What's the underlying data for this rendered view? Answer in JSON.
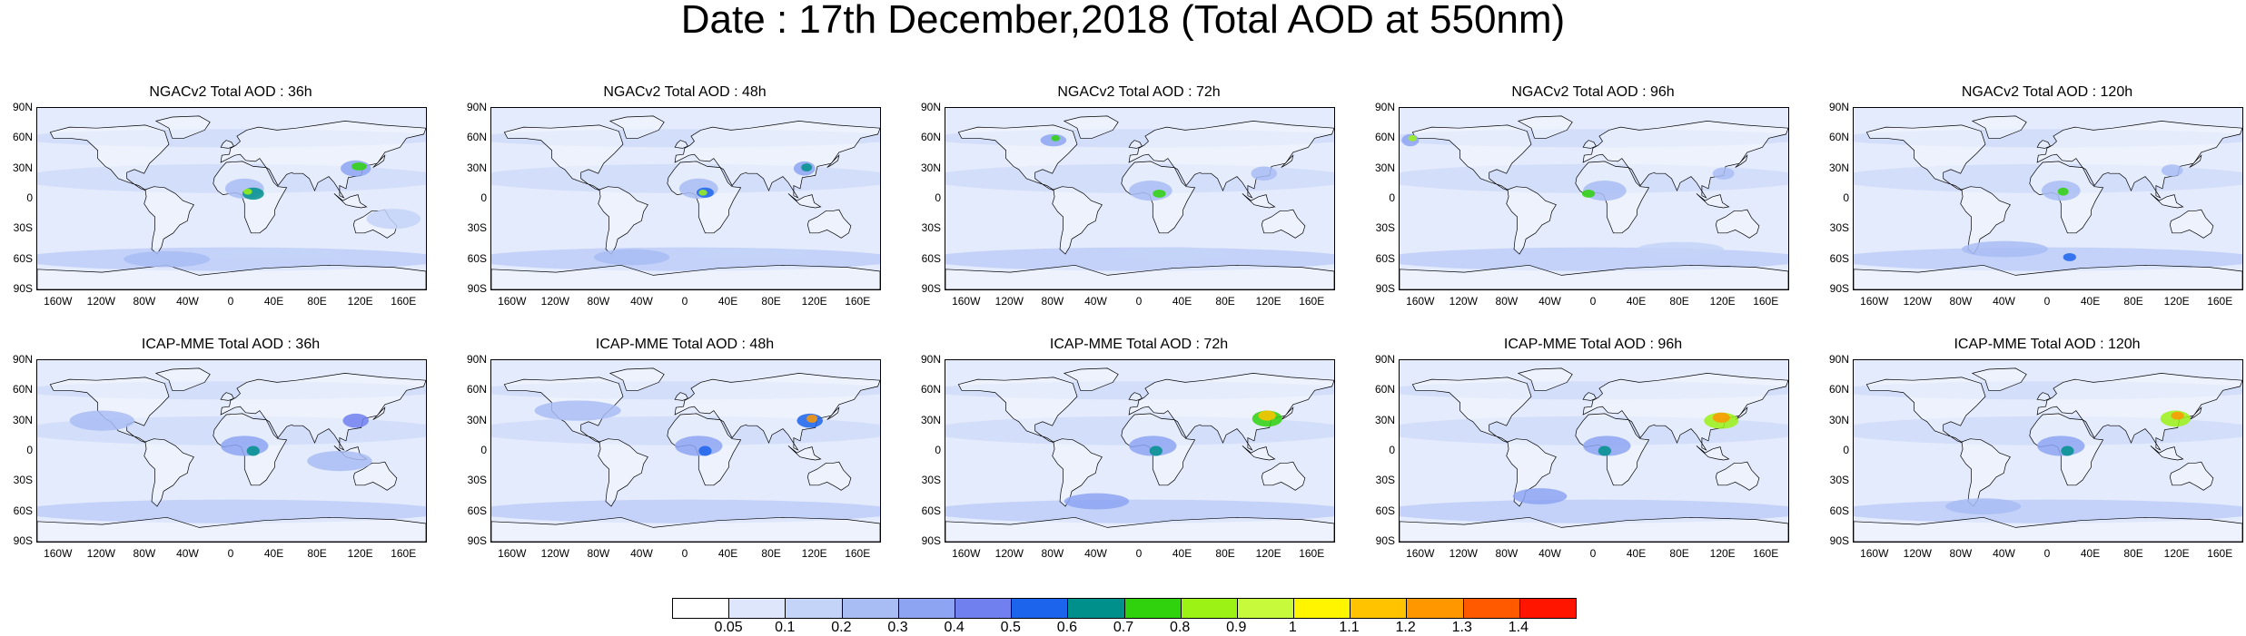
{
  "title": "Date : 17th December,2018 (Total AOD at 550nm)",
  "panels": [
    {
      "title": "NGACv2 Total AOD : 36h"
    },
    {
      "title": "NGACv2 Total AOD : 48h"
    },
    {
      "title": "NGACv2 Total AOD : 72h"
    },
    {
      "title": "NGACv2 Total AOD : 96h"
    },
    {
      "title": "NGACv2 Total AOD : 120h"
    },
    {
      "title": "ICAP-MME Total AOD : 36h"
    },
    {
      "title": "ICAP-MME Total AOD : 48h"
    },
    {
      "title": "ICAP-MME Total AOD : 72h"
    },
    {
      "title": "ICAP-MME Total AOD : 96h"
    },
    {
      "title": "ICAP-MME Total AOD : 120h"
    }
  ],
  "lat_labels": [
    "90N",
    "60N",
    "30N",
    "0",
    "30S",
    "60S",
    "90S"
  ],
  "lon_labels": [
    "160W",
    "120W",
    "80W",
    "40W",
    "0",
    "40E",
    "80E",
    "120E",
    "160E"
  ],
  "colorbar": {
    "labels": [
      "0.05",
      "0.1",
      "0.2",
      "0.3",
      "0.4",
      "0.5",
      "0.6",
      "0.7",
      "0.8",
      "0.9",
      "1",
      "1.1",
      "1.2",
      "1.3",
      "1.4"
    ],
    "colors": [
      "#ffffff",
      "#dde6fb",
      "#c4d3f8",
      "#a9bdf5",
      "#8da4f2",
      "#7080ee",
      "#1c64ec",
      "#00908c",
      "#2fd20c",
      "#9bf214",
      "#c8fa3c",
      "#fff500",
      "#ffc300",
      "#ff9800",
      "#ff5a00",
      "#ff1500"
    ]
  },
  "map_palette": {
    "ocean": "#e4ebfc",
    "land": "#f4f7fe",
    "coast": "#000000"
  }
}
